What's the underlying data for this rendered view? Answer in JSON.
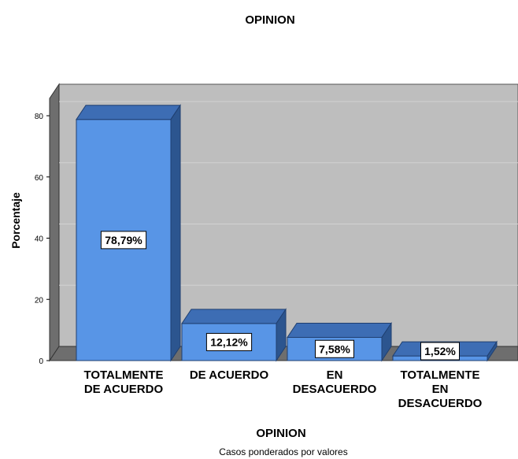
{
  "chart_data": {
    "type": "bar",
    "title": "OPINION",
    "xlabel": "OPINION",
    "ylabel": "Porcentaje",
    "footnote": "Casos ponderados por valores",
    "categories": [
      [
        "TOTALMENTE",
        "DE ACUERDO"
      ],
      [
        "DE ACUERDO"
      ],
      [
        "EN",
        "DESACUERDO"
      ],
      [
        "TOTALMENTE",
        "EN",
        "DESACUERDO"
      ]
    ],
    "values": [
      78.79,
      12.12,
      7.58,
      1.52
    ],
    "data_labels": [
      "78,79%",
      "12,12%",
      "7,58%",
      "1,52%"
    ],
    "ylim": [
      0,
      80
    ],
    "yticks": [
      "0",
      "20",
      "40",
      "60",
      "80"
    ],
    "grid": true,
    "three_d": true,
    "colors": {
      "bar_front": "#5895e6",
      "bar_top": "#3d6db4",
      "bar_side": "#2c558f",
      "back_wall": "#bebebe",
      "side_wall": "#6e6e6e",
      "floor": "#6e6e6e"
    }
  }
}
